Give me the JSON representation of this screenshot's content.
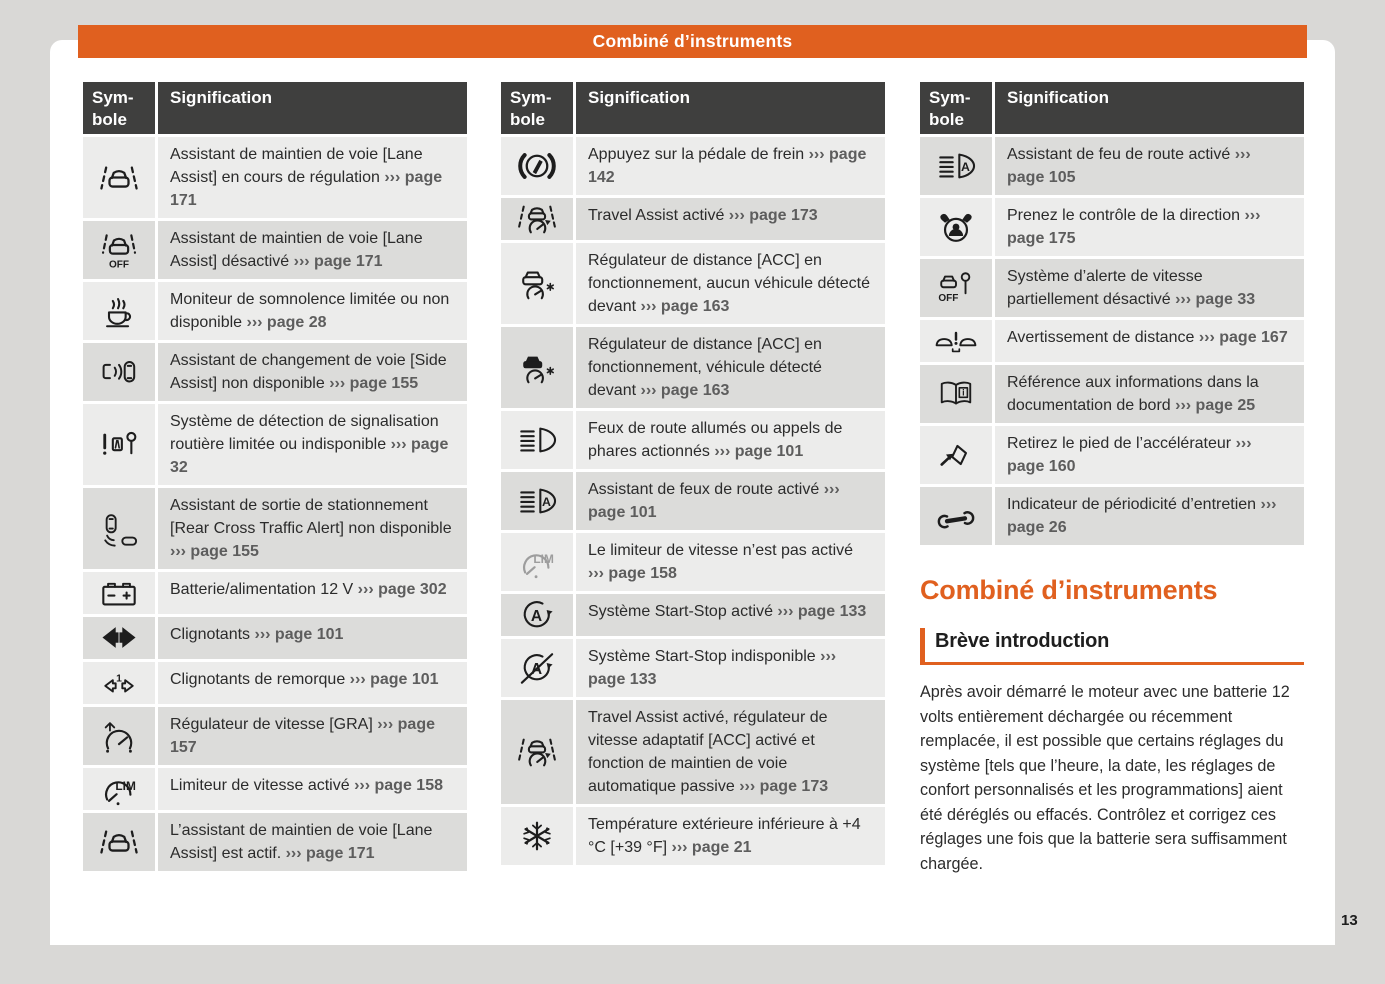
{
  "header": {
    "title": "Combiné d’instruments"
  },
  "page_number": "13",
  "colors": {
    "accent_orange": "#e0601f",
    "table_header_bg": "#3f3f3e",
    "row_light": "#ececeb",
    "row_dark": "#dcdcda",
    "canvas_bg": "#d9d8d6",
    "body_text": "#2b2b2b",
    "page_ref_text": "#5d5d5d"
  },
  "tables": [
    {
      "headers": {
        "symbol_line1": "Sym-",
        "symbol_line2": "bole",
        "signification": "Signification"
      },
      "rows": [
        {
          "icon": "lane-assist-icon",
          "text": "Assistant de maintien de voie [Lane Assist] en cours de régulation",
          "ref": "››› page 171"
        },
        {
          "icon": "lane-assist-off-icon",
          "text": "Assistant de maintien de voie [Lane Assist] désactivé",
          "ref": "››› page 171"
        },
        {
          "icon": "drowsiness-monitor-icon",
          "text": "Moniteur de somnolence limitée ou non disponible",
          "ref": "››› page 28"
        },
        {
          "icon": "side-assist-icon",
          "text": "Assistant de changement de voie [Side Assist] non disponible",
          "ref": "››› page 155"
        },
        {
          "icon": "traffic-sign-detection-icon",
          "text": "Système de détection de signalisation routière limitée ou indisponible",
          "ref": "››› page 32"
        },
        {
          "icon": "rear-cross-traffic-icon",
          "text": "Assistant de sortie de stationnement [Rear Cross Traffic Alert] non disponible",
          "ref": "››› page 155"
        },
        {
          "icon": "battery-icon",
          "text": "Batterie/alimentation 12 V",
          "ref": "››› page 302"
        },
        {
          "icon": "turn-signals-icon",
          "text": "Clignotants",
          "ref": "››› page 101"
        },
        {
          "icon": "trailer-turn-signals-icon",
          "text": "Clignotants de remorque",
          "ref": "››› page 101"
        },
        {
          "icon": "cruise-control-icon",
          "text": "Régulateur de vitesse [GRA]",
          "ref": "››› page 157"
        },
        {
          "icon": "speed-limiter-icon",
          "text": "Limiteur de vitesse activé",
          "ref": "››› page 158"
        },
        {
          "icon": "lane-assist-icon",
          "text": "L’assistant de maintien de voie [Lane Assist] est actif.",
          "ref": "››› page 171"
        }
      ]
    },
    {
      "headers": {
        "symbol_line1": "Sym-",
        "symbol_line2": "bole",
        "signification": "Signification"
      },
      "rows": [
        {
          "icon": "brake-pedal-icon",
          "text": "Appuyez sur la pédale de frein",
          "ref": "››› page 142"
        },
        {
          "icon": "travel-assist-icon",
          "text": "Travel Assist activé",
          "ref": "››› page 173"
        },
        {
          "icon": "acc-no-vehicle-icon",
          "text": "Régulateur de distance [ACC] en fonctionnement, aucun véhicule détecté devant",
          "ref": "››› page 163"
        },
        {
          "icon": "acc-vehicle-icon",
          "text": "Régulateur de distance [ACC] en fonctionnement, véhicule détecté devant",
          "ref": "››› page 163"
        },
        {
          "icon": "high-beam-icon",
          "text": "Feux de route allumés ou appels de phares actionnés",
          "ref": "››› page 101"
        },
        {
          "icon": "high-beam-assist-icon",
          "text": "Assistant de feux de route activé",
          "ref": "››› page 101"
        },
        {
          "icon": "speed-limiter-off-icon",
          "text": "Le limiteur de vitesse n’est pas activé",
          "ref": "››› page 158"
        },
        {
          "icon": "start-stop-icon",
          "text": "Système Start-Stop activé",
          "ref": "››› page 133"
        },
        {
          "icon": "start-stop-unavailable-icon",
          "text": "Système Start-Stop indisponible",
          "ref": "››› page 133"
        },
        {
          "icon": "travel-assist-icon",
          "text": "Travel Assist activé, régulateur de vitesse adaptatif [ACC] activé et fonction de maintien de voie automatique passive",
          "ref": "››› page 173"
        },
        {
          "icon": "snowflake-icon",
          "text": "Température extérieure inférieure à +4 °C [+39 °F]",
          "ref": "››› page 21"
        }
      ]
    },
    {
      "headers": {
        "symbol_line1": "Sym-",
        "symbol_line2": "bole",
        "signification": "Signification"
      },
      "rows": [
        {
          "icon": "high-beam-assist-icon",
          "text": "Assistant de feu de route activé",
          "ref": "››› page 105"
        },
        {
          "icon": "steering-takeover-icon",
          "text": "Prenez le contrôle de la direction",
          "ref": "››› page 175"
        },
        {
          "icon": "speed-alert-off-icon",
          "text": "Système d’alerte de vitesse partiellement désactivé",
          "ref": "››› page 33"
        },
        {
          "icon": "distance-warning-icon",
          "text": "Avertissement de distance",
          "ref": "››› page 167"
        },
        {
          "icon": "handbook-icon",
          "text": "Référence aux informations dans la documentation de bord",
          "ref": "››› page 25"
        },
        {
          "icon": "lift-accelerator-icon",
          "text": "Retirez le pied de l’accélérateur",
          "ref": "››› page 160"
        },
        {
          "icon": "service-interval-icon",
          "text": "Indicateur de périodicité d’entretien",
          "ref": "››› page 26"
        }
      ]
    }
  ],
  "section": {
    "title": "Combiné d’instruments",
    "subtitle": "Brève introduction",
    "paragraph": "Après avoir démarré le moteur avec une batterie 12 volts entièrement déchargée ou récemment remplacée, il est possible que certains réglages du système [tels que l’heure, la date, les réglages de confort personnalisés et les programmations] aient été déréglés ou effacés. Contrôlez et corrigez ces réglages une fois que la batterie sera suffisamment chargée."
  }
}
